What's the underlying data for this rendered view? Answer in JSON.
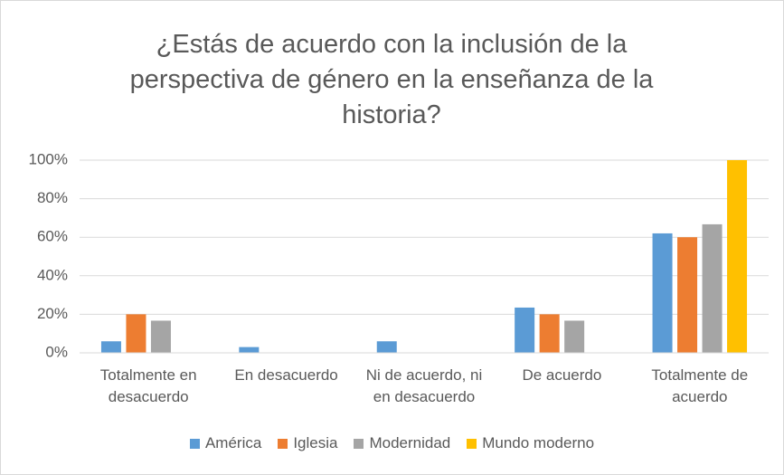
{
  "chart_data": {
    "type": "bar",
    "title": "¿Estás de acuerdo con la inclusión de la perspectiva de género en la enseñanza de la historia?",
    "categories": [
      "Totalmente en desacuerdo",
      "En desacuerdo",
      "Ni de acuerdo, ni en desacuerdo",
      "De acuerdo",
      "Totalmente de acuerdo"
    ],
    "series": [
      {
        "name": "América",
        "color": "#5b9bd5",
        "values": [
          6,
          3,
          6,
          23.5,
          62
        ]
      },
      {
        "name": "Iglesia",
        "color": "#ed7d31",
        "values": [
          20,
          0,
          0,
          20,
          60
        ]
      },
      {
        "name": "Modernidad",
        "color": "#a5a5a5",
        "values": [
          16.7,
          0,
          0,
          16.7,
          66.7
        ]
      },
      {
        "name": "Mundo moderno",
        "color": "#ffc000",
        "values": [
          0,
          0,
          0,
          0,
          100
        ]
      }
    ],
    "ylim": [
      0,
      100
    ],
    "yticks": [
      {
        "value": 0,
        "label": "0%"
      },
      {
        "value": 20,
        "label": "20%"
      },
      {
        "value": 40,
        "label": "40%"
      },
      {
        "value": 60,
        "label": "60%"
      },
      {
        "value": 80,
        "label": "80%"
      },
      {
        "value": 100,
        "label": "100%"
      }
    ],
    "grid": true,
    "legend": "bottom"
  }
}
